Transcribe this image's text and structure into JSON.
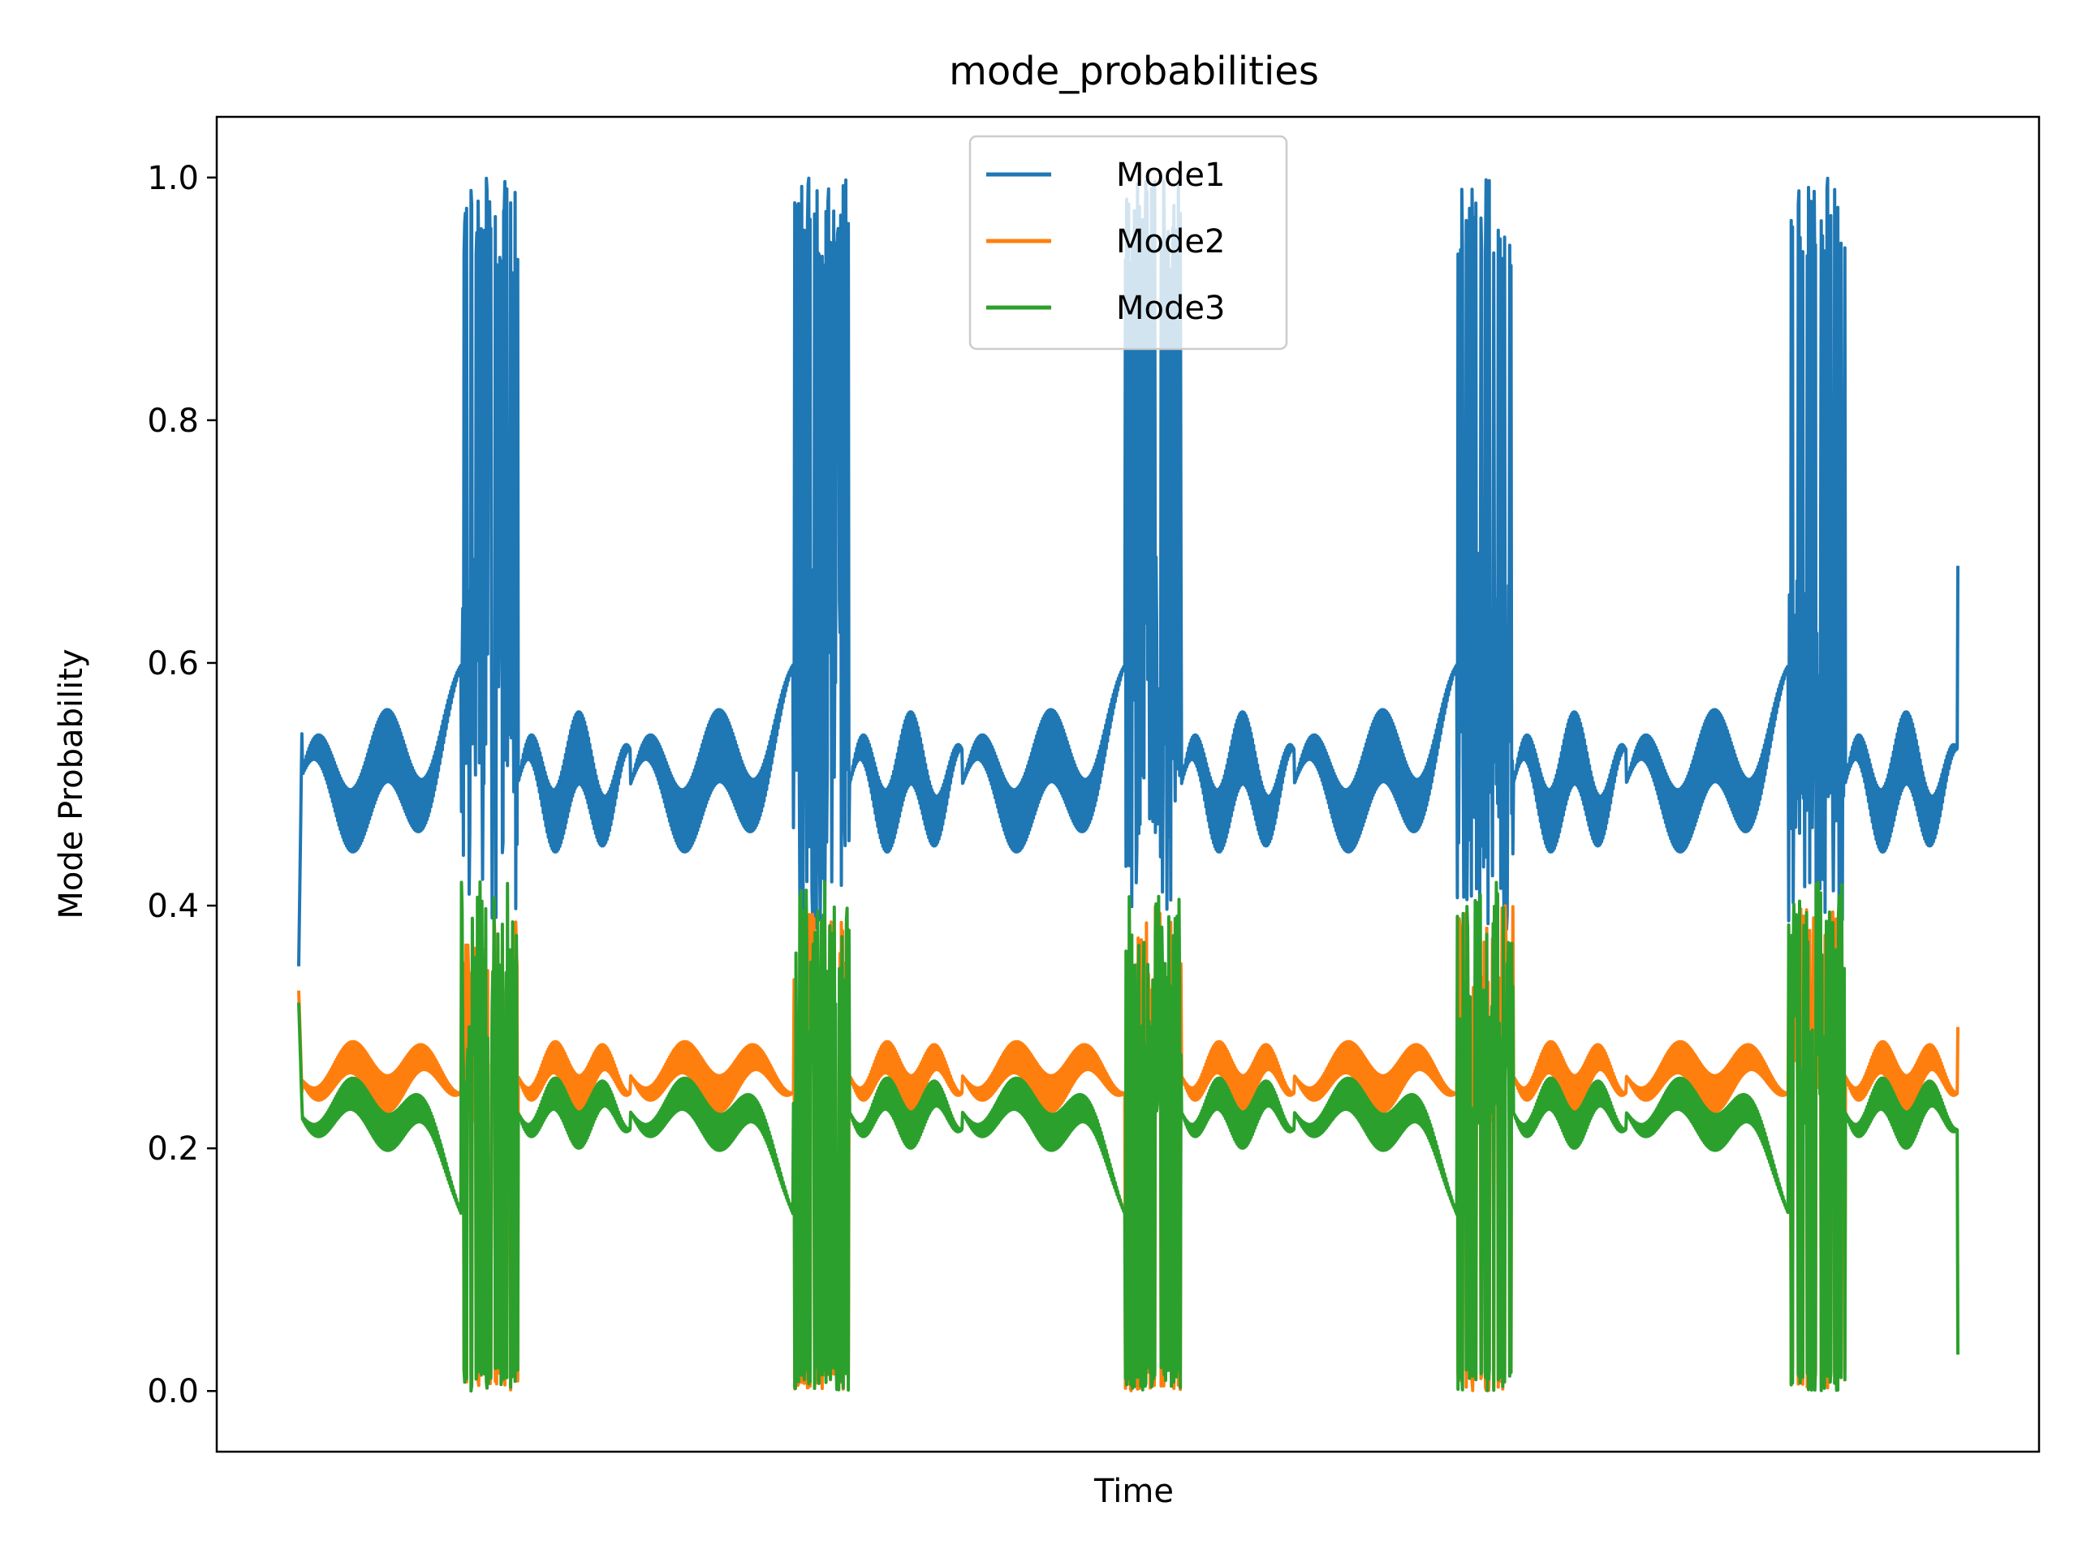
{
  "chart_data": {
    "type": "line",
    "title": "mode_probabilities",
    "xlabel": "Time",
    "ylabel": "Mode Probability",
    "ylim": [
      -0.05,
      1.05
    ],
    "yticks": [
      0.0,
      0.2,
      0.4,
      0.6,
      0.8,
      1.0
    ],
    "ytick_labels": [
      "0.0",
      "0.2",
      "0.4",
      "0.6",
      "0.8",
      "1.0"
    ],
    "xticks_shown": false,
    "grid": false,
    "legend_position": "upper-center",
    "series": [
      {
        "name": "Mode1",
        "color": "#1f77b4",
        "start_value": 0.35,
        "baseline": 0.5,
        "envelope": [
          0.46,
          0.55
        ],
        "burst_range": [
          0.36,
          1.0
        ],
        "end_value": 0.68
      },
      {
        "name": "Mode2",
        "color": "#ff7f0e",
        "start_value": 0.33,
        "baseline": 0.26,
        "envelope": [
          0.21,
          0.28
        ],
        "burst_range": [
          0.0,
          0.43
        ],
        "end_value": 0.3
      },
      {
        "name": "Mode3",
        "color": "#2ca02c",
        "start_value": 0.32,
        "baseline": 0.25,
        "envelope": [
          0.2,
          0.28
        ],
        "burst_range": [
          0.0,
          0.43
        ],
        "end_value": 0.03
      }
    ],
    "cycles": 5
  }
}
